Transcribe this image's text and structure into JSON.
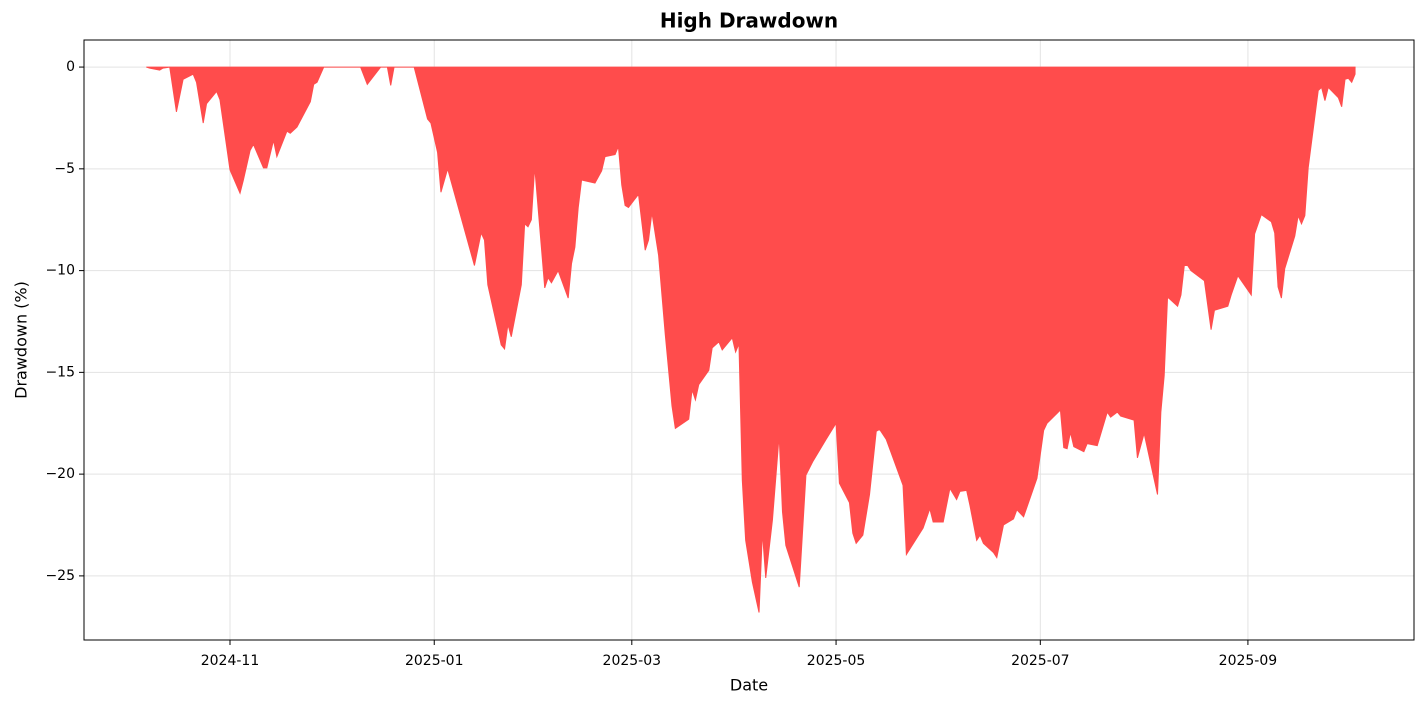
{
  "chart_data": {
    "type": "area",
    "title": "High Drawdown",
    "xlabel": "Date",
    "ylabel": "Drawdown (%)",
    "color": "#ff4c4c",
    "grid": true,
    "xlim": [
      19984.4,
      20381.6
    ],
    "xticks": [
      {
        "value": 20028,
        "label": "2024-11"
      },
      {
        "value": 20089,
        "label": "2025-01"
      },
      {
        "value": 20148,
        "label": "2025-03"
      },
      {
        "value": 20209,
        "label": "2025-05"
      },
      {
        "value": 20270,
        "label": "2025-07"
      },
      {
        "value": 20332,
        "label": "2025-09"
      }
    ],
    "ylim": [
      -28.15,
      1.33
    ],
    "yticks": [
      {
        "value": -25,
        "label": "−25"
      },
      {
        "value": -20,
        "label": "−20"
      },
      {
        "value": -15,
        "label": "−15"
      },
      {
        "value": -10,
        "label": "−10"
      },
      {
        "value": -5,
        "label": "−5"
      },
      0
    ],
    "x": [
      20003,
      20004,
      20007,
      20008,
      20010,
      20012,
      20014,
      20017,
      20018,
      20020,
      20021,
      20024,
      20025,
      20028,
      20031,
      20032,
      20034,
      20035,
      20038,
      20039,
      20041,
      20042,
      20045,
      20046,
      20048,
      20052,
      20053,
      20054,
      20056,
      20067,
      20069,
      20073,
      20075,
      20076,
      20077,
      20083,
      20087,
      20088,
      20090,
      20091,
      20093,
      20101,
      20103,
      20104,
      20105,
      20109,
      20110,
      20111,
      20112,
      20115,
      20116,
      20117,
      20118,
      20119,
      20122,
      20123,
      20124,
      20126,
      20129,
      20130,
      20131,
      20132,
      20133,
      20137,
      20139,
      20140,
      20143,
      20144,
      20145,
      20146,
      20147,
      20150,
      20152,
      20153,
      20154,
      20156,
      20158,
      20160,
      20161,
      20165,
      20166,
      20167,
      20168,
      20171,
      20172,
      20174,
      20175,
      20178,
      20179,
      20180,
      20181,
      20182,
      20184,
      20186,
      20187,
      20188,
      20190,
      20192,
      20193,
      20194,
      20198,
      20200,
      20202,
      20206,
      20209,
      20210,
      20213,
      20214,
      20215,
      20217,
      20219,
      20221,
      20222,
      20224,
      20229,
      20230,
      20235,
      20237,
      20238,
      20241,
      20243,
      20245,
      20246,
      20248,
      20249,
      20251,
      20252,
      20253,
      20256,
      20257,
      20259,
      20262,
      20263,
      20265,
      20269,
      20271,
      20272,
      20276,
      20277,
      20278,
      20279,
      20280,
      20283,
      20284,
      20287,
      20290,
      20291,
      20293,
      20294,
      20298,
      20299,
      20301,
      20305,
      20306,
      20307,
      20308,
      20311,
      20312,
      20313,
      20314,
      20315,
      20319,
      20321,
      20322,
      20326,
      20327,
      20329,
      20333,
      20334,
      20336,
      20339,
      20340,
      20341,
      20342,
      20343,
      20346,
      20347,
      20348,
      20349,
      20350,
      20353,
      20354,
      20355,
      20356,
      20359,
      20360,
      20361,
      20362,
      20363,
      20364
    ],
    "values": [
      0,
      -0.05,
      -0.15,
      -0.05,
      0,
      -2.2,
      -0.6,
      -0.35,
      -0.75,
      -2.75,
      -1.8,
      -1.2,
      -1.6,
      -5.05,
      -6.2,
      -5.55,
      -4.1,
      -3.8,
      -4.95,
      -4.95,
      -3.6,
      -4.4,
      -3.15,
      -3.25,
      -2.95,
      -1.7,
      -0.85,
      -0.75,
      0,
      0,
      -0.85,
      0,
      0,
      -0.9,
      0,
      0,
      -2.55,
      -2.75,
      -4.2,
      -6.15,
      -5.0,
      -9.75,
      -8.15,
      -8.5,
      -10.7,
      -13.65,
      -13.85,
      -12.65,
      -13.25,
      -10.7,
      -7.7,
      -7.85,
      -7.5,
      -4.9,
      -10.85,
      -10.35,
      -10.6,
      -10.0,
      -11.35,
      -9.65,
      -8.85,
      -6.9,
      -5.55,
      -5.7,
      -5.1,
      -4.4,
      -4.3,
      -3.9,
      -5.8,
      -6.8,
      -6.9,
      -6.25,
      -9.0,
      -8.5,
      -7.15,
      -9.25,
      -13.15,
      -16.65,
      -17.75,
      -17.3,
      -15.85,
      -16.35,
      -15.6,
      -14.9,
      -13.8,
      -13.5,
      -13.9,
      -13.3,
      -14.0,
      -13.6,
      -20.3,
      -23.25,
      -25.3,
      -26.8,
      -22.85,
      -25.1,
      -22.25,
      -18.1,
      -21.85,
      -23.5,
      -25.55,
      -20.05,
      -19.4,
      -18.3,
      -17.5,
      -20.45,
      -21.4,
      -22.9,
      -23.4,
      -23.0,
      -21.0,
      -17.9,
      -17.8,
      -18.3,
      -20.55,
      -23.95,
      -22.65,
      -21.7,
      -22.35,
      -22.35,
      -20.7,
      -21.25,
      -20.85,
      -20.8,
      -21.55,
      -23.25,
      -23.0,
      -23.4,
      -23.85,
      -24.1,
      -22.5,
      -22.2,
      -21.75,
      -22.1,
      -20.2,
      -17.85,
      -17.5,
      -16.85,
      -18.7,
      -18.75,
      -17.95,
      -18.65,
      -18.9,
      -18.5,
      -18.6,
      -16.95,
      -17.2,
      -16.95,
      -17.15,
      -17.35,
      -19.2,
      -18.0,
      -21.0,
      -16.95,
      -15.15,
      -11.3,
      -11.75,
      -11.2,
      -9.75,
      -9.75,
      -10.0,
      -10.5,
      -12.9,
      -11.95,
      -11.75,
      -11.2,
      -10.25,
      -11.2,
      -8.2,
      -7.25,
      -7.6,
      -8.15,
      -10.8,
      -11.35,
      -9.9,
      -8.3,
      -7.3,
      -7.7,
      -7.3,
      -4.95,
      -1.15,
      -1.0,
      -1.65,
      -1.0,
      -1.5,
      -1.95,
      -0.6,
      -0.55,
      -0.75,
      -0.35
    ]
  }
}
